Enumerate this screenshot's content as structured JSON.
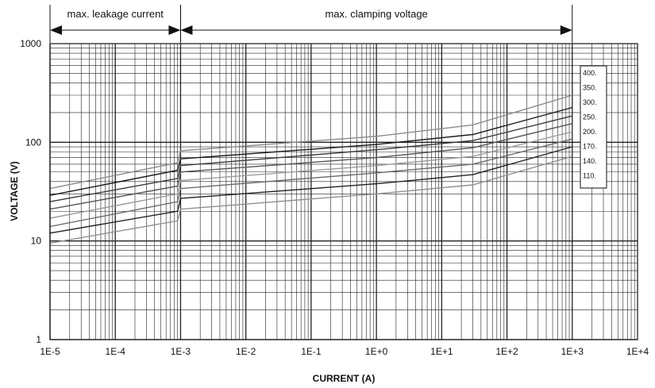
{
  "chart_data": {
    "type": "line",
    "xlabel": "CURRENT (A)",
    "ylabel": "VOLTAGE (V)",
    "x_scale": "log",
    "y_scale": "log",
    "xlim": [
      1e-05,
      10000
    ],
    "ylim": [
      1,
      1000
    ],
    "x_tick_labels": [
      "1E-5",
      "1E-4",
      "1E-3",
      "1E-2",
      "1E-1",
      "1E+0",
      "1E+1",
      "1E+2",
      "1E+3",
      "1E+4"
    ],
    "x_tick_values": [
      1e-05,
      0.0001,
      0.001,
      0.01,
      0.1,
      1,
      10,
      100,
      1000,
      10000
    ],
    "y_tick_labels": [
      "1",
      "10",
      "100",
      "1000"
    ],
    "y_tick_values": [
      1,
      10,
      100,
      1000
    ],
    "grid": true,
    "legend_position": "right",
    "ranges": [
      {
        "label": "max. leakage current",
        "from": 1e-05,
        "to": 0.001
      },
      {
        "label": "max. clamping voltage",
        "from": 0.001,
        "to": 1000
      }
    ],
    "series": [
      {
        "name": "400.",
        "color": "#8a8a8a",
        "x": [
          1e-05,
          0.0009,
          0.001,
          1,
          30,
          1000
        ],
        "y": [
          34,
          62,
          82,
          115,
          150,
          300
        ]
      },
      {
        "name": "350.",
        "color": "#1a1a1a",
        "x": [
          1e-05,
          0.0009,
          0.001,
          1,
          30,
          1000
        ],
        "y": [
          29,
          52,
          68,
          95,
          120,
          225
        ]
      },
      {
        "name": "300.",
        "color": "#3a3a3a",
        "x": [
          1e-05,
          0.0009,
          0.001,
          1,
          30,
          1000
        ],
        "y": [
          25,
          43,
          58,
          84,
          104,
          185
        ]
      },
      {
        "name": "250.",
        "color": "#555555",
        "x": [
          1e-05,
          0.0009,
          0.001,
          1,
          30,
          1000
        ],
        "y": [
          21,
          36,
          50,
          70,
          88,
          155
        ]
      },
      {
        "name": "200.",
        "color": "#9a9a9a",
        "x": [
          1e-05,
          0.0009,
          0.001,
          1,
          30,
          1000
        ],
        "y": [
          17,
          30,
          41,
          58,
          72,
          128
        ]
      },
      {
        "name": "170.",
        "color": "#6a6a6a",
        "x": [
          1e-05,
          0.0009,
          0.001,
          1,
          30,
          1000
        ],
        "y": [
          14,
          25,
          34,
          49,
          60,
          108
        ]
      },
      {
        "name": "140.",
        "color": "#222222",
        "x": [
          1e-05,
          0.0009,
          0.001,
          1,
          30,
          1000
        ],
        "y": [
          12,
          20,
          27,
          38,
          47,
          90
        ]
      },
      {
        "name": "110.",
        "color": "#8f8f8f",
        "x": [
          1e-05,
          0.0009,
          0.001,
          1,
          30,
          1000
        ],
        "y": [
          9.5,
          16,
          21,
          30,
          37,
          72
        ]
      }
    ]
  }
}
